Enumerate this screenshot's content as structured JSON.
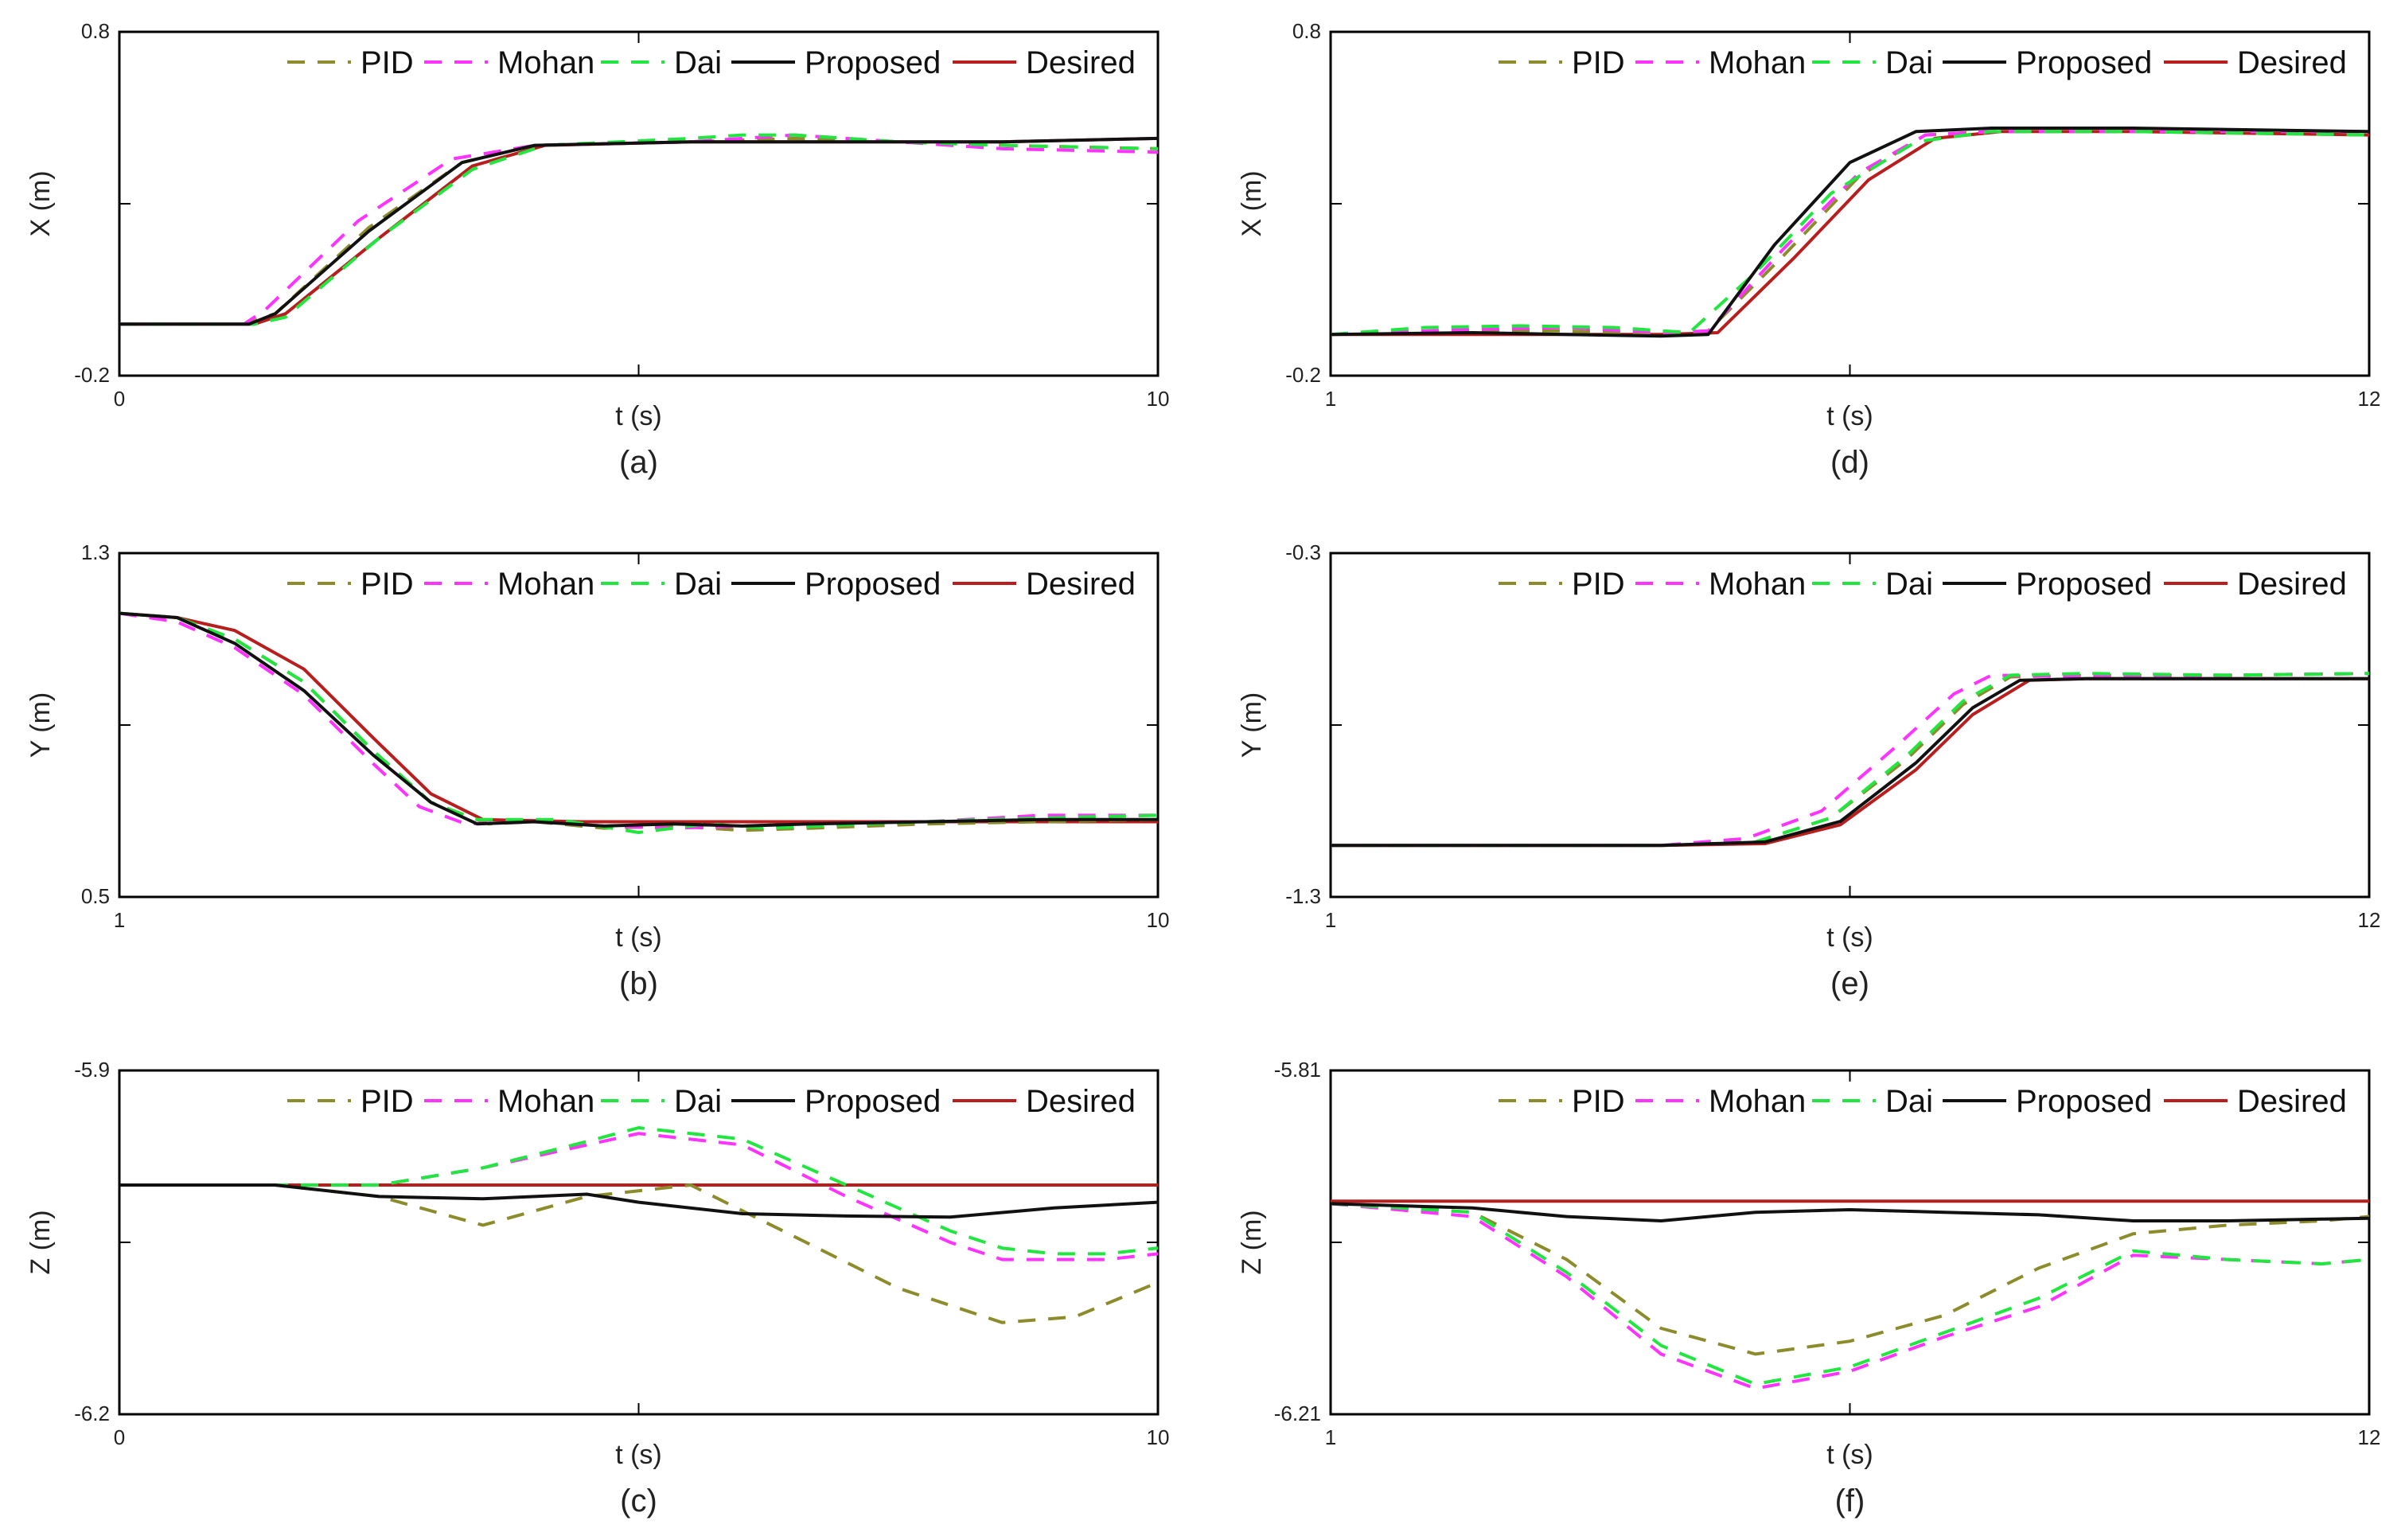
{
  "series_styles": {
    "PID": {
      "color": "#8c8c2c",
      "dash": "dashed"
    },
    "Mohan": {
      "color": "#ff33ff",
      "dash": "dashed"
    },
    "Dai": {
      "color": "#22e640",
      "dash": "dashed"
    },
    "Proposed": {
      "color": "#111111",
      "dash": "solid"
    },
    "Desired": {
      "color": "#b81e1e",
      "dash": "solid"
    }
  },
  "chart_data": [
    {
      "type": "line",
      "panel_label": "(a)",
      "xlabel": "t (s)",
      "ylabel": "X (m)",
      "xlim": [
        0,
        10
      ],
      "ylim": [
        -0.2,
        0.8
      ],
      "xticks": [
        "0",
        "t (s)",
        "10"
      ],
      "yticks": [
        "0.8",
        "-0.2"
      ],
      "legend": [
        "PID",
        "Mohan",
        "Dai",
        "Proposed",
        "Desired"
      ],
      "legend_position": "top-right",
      "series": [
        {
          "name": "PID",
          "x": [
            0,
            1.2,
            1.5,
            2.4,
            3.3,
            4.0,
            5.5,
            6.5,
            7.5,
            8.5,
            10
          ],
          "y": [
            -0.05,
            -0.05,
            -0.02,
            0.23,
            0.42,
            0.47,
            0.48,
            0.49,
            0.48,
            0.47,
            0.46
          ]
        },
        {
          "name": "Mohan",
          "x": [
            0,
            1.2,
            1.4,
            2.3,
            3.2,
            4.0,
            5.5,
            6.5,
            7.5,
            8.5,
            10
          ],
          "y": [
            -0.05,
            -0.05,
            -0.01,
            0.25,
            0.43,
            0.47,
            0.48,
            0.5,
            0.48,
            0.46,
            0.45
          ]
        },
        {
          "name": "Dai",
          "x": [
            0,
            1.3,
            1.6,
            2.5,
            3.4,
            4.1,
            5.5,
            6.0,
            6.5,
            7.5,
            8.5,
            10
          ],
          "y": [
            -0.05,
            -0.05,
            -0.03,
            0.2,
            0.4,
            0.47,
            0.49,
            0.5,
            0.5,
            0.48,
            0.47,
            0.46
          ]
        },
        {
          "name": "Proposed",
          "x": [
            0,
            1.25,
            1.5,
            2.4,
            3.3,
            4.0,
            5.5,
            7.0,
            8.5,
            10
          ],
          "y": [
            -0.05,
            -0.05,
            -0.02,
            0.22,
            0.42,
            0.47,
            0.48,
            0.48,
            0.48,
            0.49
          ]
        },
        {
          "name": "Desired",
          "x": [
            0,
            1.3,
            1.6,
            2.5,
            3.4,
            4.1,
            5.5,
            7.0,
            8.5,
            10
          ],
          "y": [
            -0.05,
            -0.05,
            -0.02,
            0.2,
            0.41,
            0.47,
            0.48,
            0.48,
            0.48,
            0.49
          ]
        }
      ]
    },
    {
      "type": "line",
      "panel_label": "(b)",
      "xlabel": "t (s)",
      "ylabel": "Y (m)",
      "xlim": [
        1,
        10
      ],
      "ylim": [
        0.5,
        1.3
      ],
      "xticks": [
        "1",
        "t (s)",
        "10"
      ],
      "yticks": [
        "1.3",
        "0.5"
      ],
      "legend": [
        "PID",
        "Mohan",
        "Dai",
        "Proposed",
        "Desired"
      ],
      "legend_position": "top-right",
      "series": [
        {
          "name": "PID",
          "x": [
            1,
            1.5,
            2.0,
            2.6,
            3.2,
            3.7,
            4.2,
            4.6,
            5.2,
            5.8,
            6.4,
            7.0,
            8.0,
            9.0,
            10
          ],
          "y": [
            1.16,
            1.15,
            1.1,
            1.0,
            0.84,
            0.72,
            0.67,
            0.675,
            0.66,
            0.665,
            0.655,
            0.66,
            0.67,
            0.675,
            0.68
          ]
        },
        {
          "name": "Mohan",
          "x": [
            1,
            1.5,
            2.0,
            2.6,
            3.2,
            3.6,
            4.0,
            4.6,
            5.2,
            5.8,
            6.4,
            7.0,
            8.0,
            9.0,
            10
          ],
          "y": [
            1.16,
            1.14,
            1.08,
            0.97,
            0.81,
            0.71,
            0.67,
            0.675,
            0.665,
            0.66,
            0.665,
            0.67,
            0.675,
            0.69,
            0.69
          ]
        },
        {
          "name": "Dai",
          "x": [
            1,
            1.5,
            2.0,
            2.6,
            3.2,
            3.7,
            4.1,
            4.8,
            5.5,
            6.1,
            6.6,
            7.5,
            8.5,
            9.2,
            10
          ],
          "y": [
            1.16,
            1.15,
            1.1,
            1.0,
            0.84,
            0.72,
            0.68,
            0.68,
            0.65,
            0.67,
            0.66,
            0.67,
            0.68,
            0.685,
            0.69
          ]
        },
        {
          "name": "Proposed",
          "x": [
            1,
            1.5,
            2.0,
            2.6,
            3.2,
            3.7,
            4.1,
            4.6,
            5.2,
            5.8,
            6.4,
            7.0,
            8.0,
            9.0,
            10
          ],
          "y": [
            1.16,
            1.15,
            1.09,
            0.98,
            0.83,
            0.72,
            0.67,
            0.675,
            0.665,
            0.67,
            0.665,
            0.67,
            0.675,
            0.68,
            0.68
          ]
        },
        {
          "name": "Desired",
          "x": [
            1,
            1.5,
            2.0,
            2.6,
            3.2,
            3.7,
            4.15,
            5.0,
            6.0,
            7.0,
            8.0,
            9.0,
            10
          ],
          "y": [
            1.16,
            1.15,
            1.12,
            1.03,
            0.87,
            0.74,
            0.68,
            0.675,
            0.675,
            0.675,
            0.675,
            0.675,
            0.675
          ]
        }
      ]
    },
    {
      "type": "line",
      "panel_label": "(c)",
      "xlabel": "t (s)",
      "ylabel": "Z (m)",
      "xlim": [
        0,
        10
      ],
      "ylim": [
        -6.2,
        -5.9
      ],
      "xticks": [
        "0",
        "t (s)",
        "10"
      ],
      "yticks": [
        "-5.9",
        "-6.2"
      ],
      "legend": [
        "PID",
        "Mohan",
        "Dai",
        "Proposed",
        "Desired"
      ],
      "legend_position": "top-right",
      "series": [
        {
          "name": "PID",
          "x": [
            0,
            1.5,
            2.5,
            3.5,
            4.5,
            5.5,
            6.5,
            7.5,
            8.5,
            9.2,
            10
          ],
          "y": [
            -6.0,
            -6.0,
            -6.01,
            -6.035,
            -6.01,
            -6.0,
            -6.045,
            -6.09,
            -6.12,
            -6.115,
            -6.085
          ]
        },
        {
          "name": "Mohan",
          "x": [
            0,
            2.5,
            3.5,
            4.5,
            5.0,
            6.0,
            7.0,
            8.0,
            8.5,
            9.0,
            9.5,
            10
          ],
          "y": [
            -6.0,
            -6.0,
            -5.985,
            -5.965,
            -5.955,
            -5.965,
            -6.01,
            -6.05,
            -6.065,
            -6.065,
            -6.065,
            -6.06
          ]
        },
        {
          "name": "Dai",
          "x": [
            0,
            2.5,
            3.5,
            4.5,
            5.0,
            6.0,
            7.0,
            8.0,
            8.5,
            9.0,
            9.5,
            10
          ],
          "y": [
            -6.0,
            -6.0,
            -5.985,
            -5.962,
            -5.95,
            -5.96,
            -6.0,
            -6.04,
            -6.055,
            -6.06,
            -6.06,
            -6.055
          ]
        },
        {
          "name": "Proposed",
          "x": [
            0,
            1.5,
            2.5,
            3.5,
            4.5,
            5.0,
            6.0,
            7.0,
            8.0,
            9.0,
            10
          ],
          "y": [
            -6.0,
            -6.0,
            -6.01,
            -6.012,
            -6.008,
            -6.015,
            -6.025,
            -6.027,
            -6.028,
            -6.02,
            -6.015
          ]
        },
        {
          "name": "Desired",
          "x": [
            0,
            10
          ],
          "y": [
            -6.0,
            -6.0
          ]
        }
      ]
    },
    {
      "type": "line",
      "panel_label": "(d)",
      "xlabel": "t (s)",
      "ylabel": "X (m)",
      "xlim": [
        1,
        12
      ],
      "ylim": [
        -0.2,
        0.8
      ],
      "xticks": [
        "1",
        "t (s)",
        "12"
      ],
      "yticks": [
        "0.8",
        "-0.2"
      ],
      "legend": [
        "PID",
        "Mohan",
        "Dai",
        "Proposed",
        "Desired"
      ],
      "legend_position": "top-right",
      "series": [
        {
          "name": "PID",
          "x": [
            1,
            2.5,
            3.5,
            4.5,
            5.0,
            5.8,
            6.6,
            7.3,
            8.0,
            9.5,
            12
          ],
          "y": [
            -0.08,
            -0.07,
            -0.07,
            -0.08,
            -0.07,
            0.15,
            0.38,
            0.5,
            0.51,
            0.51,
            0.51
          ]
        },
        {
          "name": "Mohan",
          "x": [
            1,
            2.5,
            3.5,
            4.5,
            5.0,
            5.8,
            6.6,
            7.3,
            8.0,
            9.5,
            12
          ],
          "y": [
            -0.08,
            -0.065,
            -0.06,
            -0.075,
            -0.07,
            0.17,
            0.39,
            0.5,
            0.51,
            0.51,
            0.51
          ]
        },
        {
          "name": "Dai",
          "x": [
            1,
            2.0,
            3.0,
            4.0,
            4.8,
            5.5,
            6.3,
            7.2,
            8.0,
            9.5,
            12
          ],
          "y": [
            -0.08,
            -0.06,
            -0.055,
            -0.06,
            -0.075,
            0.1,
            0.33,
            0.48,
            0.51,
            0.51,
            0.5
          ]
        },
        {
          "name": "Proposed",
          "x": [
            1,
            2.5,
            3.5,
            4.5,
            5.0,
            5.7,
            6.5,
            7.2,
            8.0,
            9.5,
            12
          ],
          "y": [
            -0.08,
            -0.075,
            -0.08,
            -0.085,
            -0.08,
            0.18,
            0.42,
            0.51,
            0.52,
            0.52,
            0.51
          ]
        },
        {
          "name": "Desired",
          "x": [
            1,
            2.5,
            3.5,
            4.5,
            5.1,
            5.9,
            6.7,
            7.4,
            8.1,
            9.5,
            12
          ],
          "y": [
            -0.08,
            -0.08,
            -0.08,
            -0.08,
            -0.075,
            0.14,
            0.37,
            0.49,
            0.51,
            0.51,
            0.5
          ]
        }
      ]
    },
    {
      "type": "line",
      "panel_label": "(e)",
      "xlabel": "t (s)",
      "ylabel": "Y (m)",
      "xlim": [
        1,
        12
      ],
      "ylim": [
        -1.3,
        -0.3
      ],
      "xticks": [
        "1",
        "t (s)",
        "12"
      ],
      "yticks": [
        "-0.3",
        "-1.3"
      ],
      "legend": [
        "PID",
        "Mohan",
        "Dai",
        "Proposed",
        "Desired"
      ],
      "legend_position": "top-right",
      "series": [
        {
          "name": "PID",
          "x": [
            1,
            3.0,
            4.5,
            5.5,
            6.3,
            7.1,
            7.7,
            8.2,
            9.0,
            10.5,
            12
          ],
          "y": [
            -1.15,
            -1.15,
            -1.15,
            -1.14,
            -1.07,
            -0.9,
            -0.74,
            -0.66,
            -0.655,
            -0.655,
            -0.65
          ]
        },
        {
          "name": "Mohan",
          "x": [
            1,
            3.0,
            4.5,
            5.4,
            6.2,
            7.0,
            7.6,
            8.0,
            9.0,
            10.5,
            12
          ],
          "y": [
            -1.15,
            -1.15,
            -1.15,
            -1.13,
            -1.05,
            -0.86,
            -0.71,
            -0.655,
            -0.66,
            -0.655,
            -0.65
          ]
        },
        {
          "name": "Dai",
          "x": [
            1,
            3.0,
            4.5,
            5.5,
            6.3,
            7.1,
            7.7,
            8.2,
            9.0,
            10.5,
            12
          ],
          "y": [
            -1.15,
            -1.15,
            -1.15,
            -1.14,
            -1.07,
            -0.89,
            -0.73,
            -0.655,
            -0.65,
            -0.655,
            -0.65
          ]
        },
        {
          "name": "Proposed",
          "x": [
            1,
            3.0,
            4.5,
            5.6,
            6.4,
            7.2,
            7.8,
            8.3,
            9.0,
            10.5,
            12
          ],
          "y": [
            -1.15,
            -1.15,
            -1.15,
            -1.14,
            -1.08,
            -0.91,
            -0.75,
            -0.67,
            -0.665,
            -0.665,
            -0.665
          ]
        },
        {
          "name": "Desired",
          "x": [
            1,
            3.0,
            4.5,
            5.6,
            6.4,
            7.2,
            7.8,
            8.4,
            9.0,
            10.5,
            12
          ],
          "y": [
            -1.15,
            -1.15,
            -1.15,
            -1.145,
            -1.09,
            -0.93,
            -0.77,
            -0.67,
            -0.665,
            -0.665,
            -0.665
          ]
        }
      ]
    },
    {
      "type": "line",
      "panel_label": "(f)",
      "xlabel": "t (s)",
      "ylabel": "Z (m)",
      "xlim": [
        1,
        12
      ],
      "ylim": [
        -6.21,
        -5.81
      ],
      "xticks": [
        "1",
        "t (s)",
        "12"
      ],
      "yticks": [
        "-5.81",
        "-6.21"
      ],
      "legend": [
        "PID",
        "Mohan",
        "Dai",
        "Proposed",
        "Desired"
      ],
      "legend_position": "top-right",
      "series": [
        {
          "name": "PID",
          "x": [
            1,
            2.5,
            3.5,
            4.5,
            5.5,
            6.5,
            7.5,
            8.5,
            9.5,
            10.5,
            11.5,
            12
          ],
          "y": [
            -5.965,
            -5.975,
            -6.03,
            -6.11,
            -6.14,
            -6.125,
            -6.095,
            -6.04,
            -6.0,
            -5.99,
            -5.985,
            -5.98
          ]
        },
        {
          "name": "Mohan",
          "x": [
            1,
            2.5,
            3.5,
            4.5,
            5.5,
            6.5,
            7.5,
            8.5,
            9.5,
            10.5,
            11.5,
            12
          ],
          "y": [
            -5.965,
            -5.98,
            -6.05,
            -6.14,
            -6.18,
            -6.16,
            -6.12,
            -6.085,
            -6.025,
            -6.03,
            -6.035,
            -6.03
          ]
        },
        {
          "name": "Dai",
          "x": [
            1,
            2.5,
            3.5,
            4.5,
            5.5,
            6.5,
            7.5,
            8.5,
            9.5,
            10.5,
            11.5,
            12
          ],
          "y": [
            -5.965,
            -5.975,
            -6.045,
            -6.13,
            -6.175,
            -6.155,
            -6.115,
            -6.075,
            -6.02,
            -6.03,
            -6.035,
            -6.03
          ]
        },
        {
          "name": "Proposed",
          "x": [
            1,
            2.5,
            3.5,
            4.5,
            5.5,
            6.5,
            7.5,
            8.5,
            9.5,
            10.5,
            11.5,
            12
          ],
          "y": [
            -5.965,
            -5.97,
            -5.98,
            -5.985,
            -5.975,
            -5.972,
            -5.975,
            -5.978,
            -5.985,
            -5.985,
            -5.983,
            -5.982
          ]
        },
        {
          "name": "Desired",
          "x": [
            1,
            12
          ],
          "y": [
            -5.962,
            -5.962
          ]
        }
      ]
    }
  ]
}
